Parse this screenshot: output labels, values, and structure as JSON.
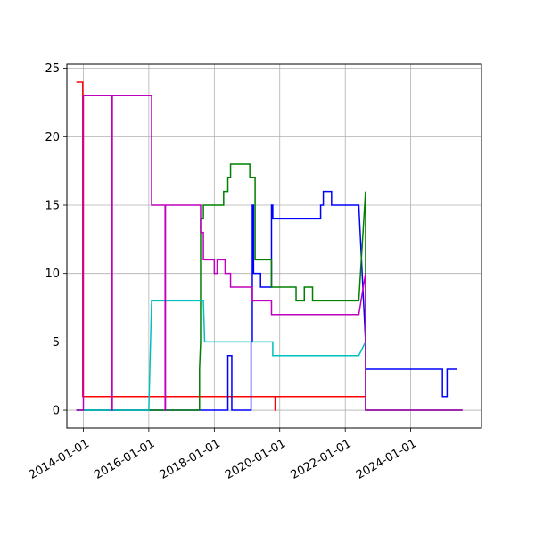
{
  "chart_data": {
    "type": "line",
    "title": "",
    "xlabel": "",
    "ylabel": "",
    "x_axis_type": "date",
    "xlim": [
      "2013-07-01",
      "2026-03-01"
    ],
    "ylim": [
      -1.3,
      25.3
    ],
    "grid": true,
    "legend": "none",
    "x_tick_labels": [
      "2014-01-01",
      "2016-01-01",
      "2018-01-01",
      "2020-01-01",
      "2022-01-01",
      "2024-01-01"
    ],
    "x_ticks": [
      "2014-01-01",
      "2016-01-01",
      "2018-01-01",
      "2020-01-01",
      "2022-01-01",
      "2024-01-01"
    ],
    "y_ticks": [
      0,
      5,
      10,
      15,
      20,
      25
    ],
    "series": [
      {
        "color": "#ff0000",
        "points": [
          [
            "2013-10-15",
            24
          ],
          [
            "2013-12-25",
            24
          ],
          [
            "2013-12-25",
            1
          ],
          [
            "2019-11-10",
            1
          ],
          [
            "2019-11-10",
            0
          ],
          [
            "2019-11-15",
            0
          ],
          [
            "2019-11-15",
            1
          ],
          [
            "2022-08-15",
            1
          ],
          [
            "2022-08-15",
            0
          ],
          [
            "2025-08-01",
            0
          ]
        ]
      },
      {
        "color": "#0000ff",
        "points": [
          [
            "2013-10-15",
            0
          ],
          [
            "2018-06-01",
            0
          ],
          [
            "2018-06-01",
            4
          ],
          [
            "2018-07-15",
            4
          ],
          [
            "2018-07-15",
            0
          ],
          [
            "2019-02-15",
            0
          ],
          [
            "2019-02-15",
            5
          ],
          [
            "2019-03-01",
            5
          ],
          [
            "2019-03-01",
            15
          ],
          [
            "2019-03-15",
            15
          ],
          [
            "2019-03-15",
            10
          ],
          [
            "2019-06-01",
            10
          ],
          [
            "2019-06-01",
            9
          ],
          [
            "2019-10-01",
            9
          ],
          [
            "2019-10-01",
            15
          ],
          [
            "2019-10-15",
            15
          ],
          [
            "2019-10-15",
            14
          ],
          [
            "2021-04-01",
            14
          ],
          [
            "2021-04-01",
            15
          ],
          [
            "2021-05-01",
            15
          ],
          [
            "2021-05-01",
            16
          ],
          [
            "2021-08-01",
            16
          ],
          [
            "2021-08-01",
            15
          ],
          [
            "2022-06-01",
            15
          ],
          [
            "2022-08-15",
            5
          ],
          [
            "2022-08-15",
            3
          ],
          [
            "2024-12-20",
            3
          ],
          [
            "2024-12-20",
            1
          ],
          [
            "2025-02-10",
            1
          ],
          [
            "2025-02-10",
            3
          ],
          [
            "2025-06-01",
            3
          ]
        ]
      },
      {
        "color": "#008000",
        "points": [
          [
            "2013-10-15",
            0
          ],
          [
            "2017-07-20",
            0
          ],
          [
            "2017-07-20",
            3
          ],
          [
            "2017-08-01",
            5
          ],
          [
            "2017-08-01",
            14
          ],
          [
            "2017-09-01",
            14
          ],
          [
            "2017-09-01",
            15
          ],
          [
            "2018-04-15",
            15
          ],
          [
            "2018-04-15",
            16
          ],
          [
            "2018-06-01",
            16
          ],
          [
            "2018-06-01",
            17
          ],
          [
            "2018-07-01",
            17
          ],
          [
            "2018-07-01",
            18
          ],
          [
            "2019-02-01",
            18
          ],
          [
            "2019-02-01",
            17
          ],
          [
            "2019-04-01",
            17
          ],
          [
            "2019-04-01",
            11
          ],
          [
            "2019-10-01",
            11
          ],
          [
            "2019-10-01",
            9
          ],
          [
            "2020-07-01",
            9
          ],
          [
            "2020-07-01",
            8
          ],
          [
            "2020-10-01",
            8
          ],
          [
            "2020-10-01",
            9
          ],
          [
            "2021-01-01",
            9
          ],
          [
            "2021-01-01",
            8
          ],
          [
            "2022-06-01",
            8
          ],
          [
            "2022-08-15",
            16
          ],
          [
            "2022-08-15",
            0
          ],
          [
            "2025-08-01",
            0
          ]
        ]
      },
      {
        "color": "#00bfbf",
        "points": [
          [
            "2013-10-15",
            0
          ],
          [
            "2016-01-01",
            0
          ],
          [
            "2016-02-01",
            8
          ],
          [
            "2017-09-01",
            8
          ],
          [
            "2017-09-15",
            5
          ],
          [
            "2019-10-15",
            5
          ],
          [
            "2019-10-15",
            4
          ],
          [
            "2022-06-01",
            4
          ],
          [
            "2022-08-15",
            5
          ],
          [
            "2022-08-15",
            0
          ],
          [
            "2025-08-01",
            0
          ]
        ]
      },
      {
        "color": "#bf00bf",
        "points": [
          [
            "2013-10-15",
            0
          ],
          [
            "2014-01-01",
            0
          ],
          [
            "2014-01-01",
            23
          ],
          [
            "2014-11-15",
            23
          ],
          [
            "2014-11-15",
            0
          ],
          [
            "2014-11-20",
            0
          ],
          [
            "2014-11-20",
            23
          ],
          [
            "2016-02-01",
            23
          ],
          [
            "2016-02-01",
            15
          ],
          [
            "2016-07-01",
            15
          ],
          [
            "2016-07-01",
            0
          ],
          [
            "2016-07-05",
            0
          ],
          [
            "2016-07-05",
            15
          ],
          [
            "2017-08-01",
            15
          ],
          [
            "2017-08-01",
            13
          ],
          [
            "2017-09-01",
            13
          ],
          [
            "2017-09-01",
            11
          ],
          [
            "2018-01-01",
            11
          ],
          [
            "2018-01-01",
            10
          ],
          [
            "2018-02-01",
            10
          ],
          [
            "2018-02-01",
            11
          ],
          [
            "2018-05-01",
            11
          ],
          [
            "2018-05-01",
            10
          ],
          [
            "2018-07-01",
            10
          ],
          [
            "2018-07-01",
            9
          ],
          [
            "2019-03-01",
            9
          ],
          [
            "2019-03-01",
            8
          ],
          [
            "2019-10-01",
            8
          ],
          [
            "2019-10-01",
            7
          ],
          [
            "2022-06-01",
            7
          ],
          [
            "2022-08-15",
            10
          ],
          [
            "2022-08-15",
            0
          ],
          [
            "2025-08-01",
            0
          ]
        ]
      }
    ]
  }
}
